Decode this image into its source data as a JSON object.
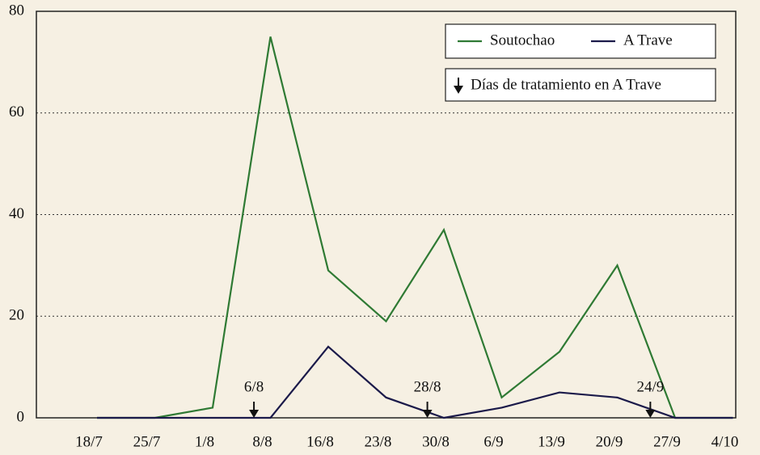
{
  "chart_data": {
    "type": "line",
    "categories": [
      "18/7",
      "25/7",
      "1/8",
      "8/8",
      "16/8",
      "23/8",
      "30/8",
      "6/9",
      "13/9",
      "20/9",
      "27/9",
      "4/10"
    ],
    "series": [
      {
        "name": "Soutochao",
        "color": "#2f7a34",
        "values": [
          0,
          0,
          2,
          75,
          29,
          19,
          37,
          4,
          13,
          30,
          0,
          0
        ]
      },
      {
        "name": "A Trave",
        "color": "#1b1a4a",
        "values": [
          0,
          0,
          0,
          0,
          14,
          4,
          0,
          2,
          5,
          4,
          0,
          0
        ]
      }
    ],
    "ylim": [
      0,
      80
    ],
    "yticks": [
      0,
      20,
      40,
      60,
      80
    ],
    "grid": true,
    "legend": "upper right",
    "treatment": {
      "label": "Días de tratamiento en A Trave",
      "dates": [
        "6/8",
        "28/8",
        "24/9"
      ]
    }
  }
}
